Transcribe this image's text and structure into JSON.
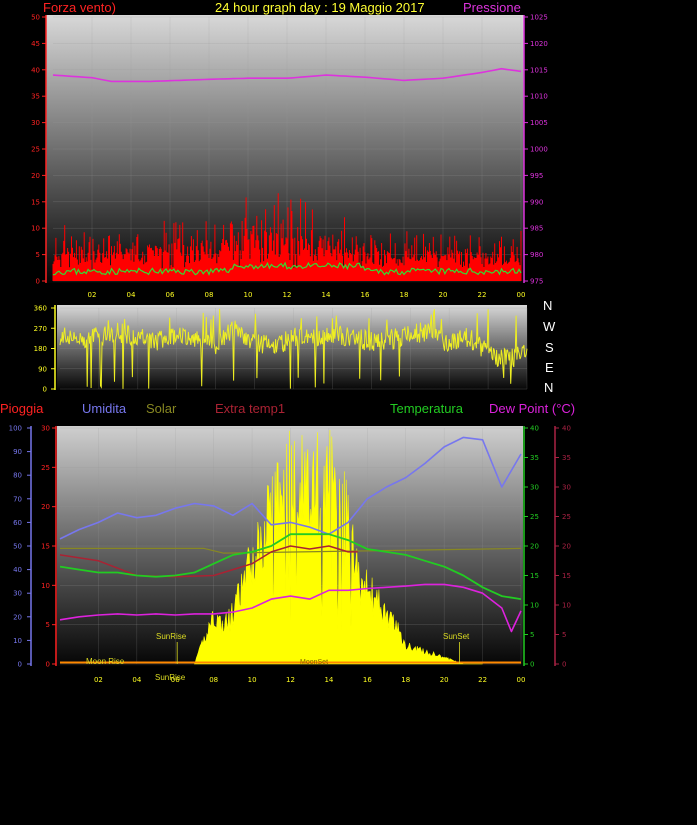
{
  "header": {
    "title": "24 hour graph day : 19 Maggio 2017",
    "left_label": "Forza vento)",
    "right_label": "Pressione"
  },
  "compass": [
    "N",
    "W",
    "S",
    "E",
    "N"
  ],
  "legend": {
    "pioggia": "Pioggia",
    "umidita": "Umidita",
    "solar": "Solar",
    "extra": "Extra temp1",
    "temperatura": "Temperatura",
    "dewpoint": "Dew Point (°C)"
  },
  "annotations": {
    "sunrise_top": "SunRise",
    "sunset": "SunSet",
    "moonrise": "Moon Rise",
    "sunrise_axis": "SunRise",
    "moonset": "MoonSet"
  },
  "colors": {
    "wind": "#ff0000",
    "gust_avg": "#33dd33",
    "pressure": "#dd33dd",
    "direction": "#eeee22",
    "humidity": "#7777ee",
    "solar": "#ffff00",
    "solar_line": "#888822",
    "extra": "#aa2233",
    "temperature": "#22cc22",
    "dewpoint": "#dd22dd",
    "rain": "#ff2222"
  },
  "chart_data": [
    {
      "type": "line",
      "name": "wind-pressure",
      "x_ticks": [
        "02",
        "04",
        "06",
        "08",
        "10",
        "12",
        "14",
        "16",
        "18",
        "20",
        "22",
        "00"
      ],
      "y_left_ticks": [
        0,
        5,
        10,
        15,
        20,
        25,
        30,
        35,
        40,
        45,
        50
      ],
      "y_right_ticks": [
        975,
        980,
        985,
        990,
        995,
        1000,
        1005,
        1010,
        1015,
        1020,
        1025
      ],
      "ylim_left": [
        0,
        50
      ],
      "ylim_right": [
        975,
        1025
      ],
      "pressure": {
        "x": [
          0,
          2,
          3,
          5,
          8,
          10,
          12,
          14,
          16,
          18,
          20,
          22,
          23,
          24
        ],
        "y": [
          1014,
          1013.5,
          1012.8,
          1012.8,
          1013.2,
          1013.4,
          1013.4,
          1014,
          1013.6,
          1013,
          1013.4,
          1014.5,
          1015.2,
          1014.7
        ]
      },
      "wind_envelope": {
        "x": [
          0,
          2,
          4,
          6,
          8,
          10,
          11,
          12,
          13,
          14,
          15,
          16,
          18,
          20,
          22,
          24
        ],
        "y": [
          8,
          6,
          7,
          9,
          10,
          14,
          16,
          17,
          14,
          11,
          9,
          8,
          7,
          6,
          5,
          6
        ]
      }
    },
    {
      "type": "line",
      "name": "wind-direction",
      "y_ticks": [
        0,
        90,
        180,
        270,
        360
      ],
      "ylim": [
        0,
        360
      ],
      "x": [
        0,
        1,
        2,
        3,
        4,
        5,
        6,
        7,
        8,
        9,
        10,
        11,
        12,
        13,
        14,
        15,
        16,
        17,
        18,
        19,
        20,
        21,
        22,
        23,
        24
      ],
      "y": [
        240,
        220,
        235,
        250,
        230,
        215,
        240,
        230,
        200,
        270,
        210,
        190,
        230,
        220,
        240,
        230,
        210,
        220,
        240,
        260,
        200,
        230,
        160,
        130,
        170
      ]
    },
    {
      "type": "line",
      "name": "weather",
      "x_ticks": [
        "02",
        "04",
        "06",
        "08",
        "10",
        "12",
        "14",
        "16",
        "18",
        "20",
        "22",
        "00"
      ],
      "y_left_ticks_humidity": [
        0,
        10,
        20,
        30,
        40,
        50,
        60,
        70,
        80,
        90,
        100
      ],
      "y_left_ticks_rain": [
        0,
        5,
        10,
        15,
        20,
        25,
        30
      ],
      "y_right_ticks": [
        0,
        5,
        10,
        15,
        20,
        25,
        30,
        35,
        40
      ],
      "humidity": {
        "x": [
          0,
          1,
          2,
          3,
          4,
          5,
          6,
          7,
          8,
          9,
          10,
          11,
          12,
          13,
          14,
          15,
          16,
          17,
          18,
          19,
          20,
          21,
          22,
          23,
          24
        ],
        "y": [
          53,
          57,
          60,
          64,
          62,
          63,
          66,
          68,
          67,
          63,
          68,
          59,
          60,
          58,
          55,
          60,
          70,
          75,
          79,
          85,
          92,
          96,
          95,
          75,
          89
        ]
      },
      "temperature": {
        "x": [
          0,
          1,
          2,
          3,
          4,
          5,
          6,
          7,
          8,
          9,
          10,
          11,
          12,
          13,
          14,
          15,
          16,
          17,
          18,
          19,
          20,
          21,
          22,
          23,
          24
        ],
        "y": [
          16.5,
          16,
          15.5,
          15.5,
          15,
          14.8,
          15,
          15.5,
          17,
          18.5,
          19,
          20,
          22,
          22,
          22,
          21,
          19.5,
          19,
          18.5,
          17.5,
          16.5,
          15,
          13,
          11.5,
          11
        ]
      },
      "dewpoint": {
        "x": [
          0,
          1,
          2,
          3,
          4,
          5,
          6,
          7,
          8,
          9,
          10,
          11,
          12,
          13,
          14,
          15,
          16,
          17,
          18,
          19,
          20,
          21,
          22,
          23,
          23.5,
          24
        ],
        "y": [
          7.5,
          8,
          8.3,
          8.5,
          8.3,
          8.5,
          8.3,
          8.5,
          8.5,
          8.8,
          9.5,
          11,
          11.5,
          11,
          12.5,
          12.5,
          12.8,
          13,
          13.2,
          13.5,
          13.5,
          13,
          12,
          9.5,
          5.5,
          9
        ]
      },
      "extra_temp1": {
        "x": [
          0,
          2,
          4,
          6,
          8,
          9,
          10,
          11,
          12,
          13,
          14,
          15,
          15.5
        ],
        "y": [
          18.5,
          17.5,
          15,
          14.8,
          15,
          16,
          17,
          19,
          20,
          19.5,
          20,
          19,
          19
        ]
      },
      "solar_line": {
        "x": [
          0,
          7.5,
          8.5,
          24
        ],
        "y": [
          49,
          49,
          47,
          49
        ]
      },
      "solar_envelope": {
        "x": [
          7,
          7.5,
          8,
          8.5,
          9,
          10,
          10.5,
          11,
          11.5,
          12,
          12.5,
          13,
          13.5,
          14,
          14.5,
          15,
          15.5,
          16,
          16.5,
          17,
          17.5,
          18,
          19,
          20,
          21,
          22
        ],
        "y": [
          0,
          4,
          8,
          6,
          8,
          17,
          20,
          28,
          26,
          33,
          30,
          28,
          30,
          30,
          28,
          24,
          14,
          12,
          10,
          8,
          6,
          3,
          2,
          1,
          0,
          0
        ]
      }
    }
  ]
}
